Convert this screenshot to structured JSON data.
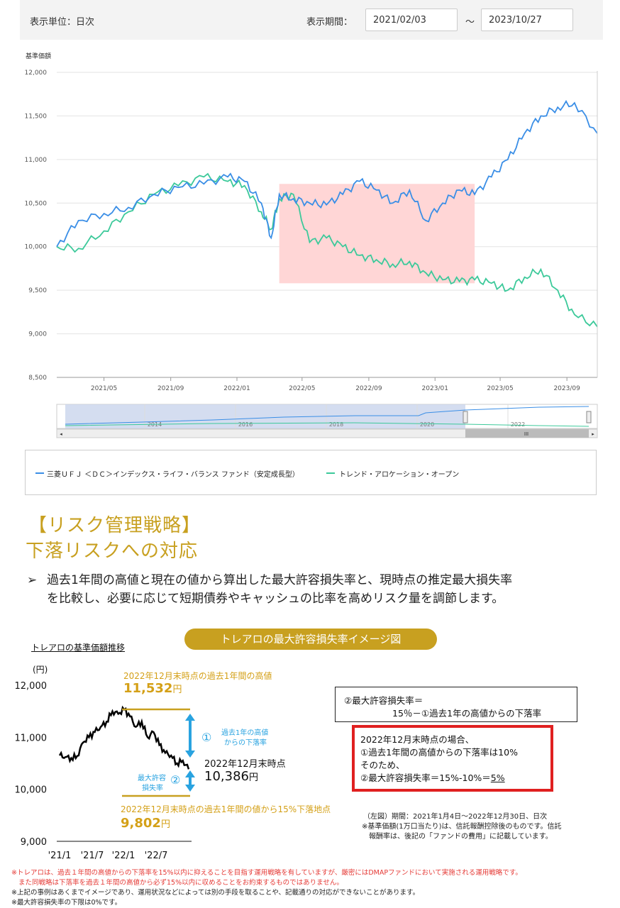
{
  "controls": {
    "unit_label": "表示単位：日次",
    "period_label": "表示期間：",
    "start_date": "2021/02/03",
    "tilde": "～",
    "end_date": "2023/10/27"
  },
  "colors": {
    "blue": "#3a8ee6",
    "green": "#3cc99a",
    "highlight": "#ffd6d6",
    "gold": "#c8a020",
    "red": "#e53935"
  },
  "chart_data": [
    {
      "type": "line",
      "title": "",
      "ylabel": "基準価額",
      "ylim": [
        8500,
        12000
      ],
      "yticks": [
        "12,000",
        "11,500",
        "11,000",
        "10,500",
        "10,000",
        "9,500",
        "9,000",
        "8,500"
      ],
      "xticks": [
        "2021/05",
        "2021/09",
        "2022/01",
        "2022/05",
        "2022/09",
        "2023/01",
        "2023/05",
        "2023/09"
      ],
      "x_dates": [
        "2021/02/03",
        "2021/03/15",
        "2021/05/01",
        "2021/06/15",
        "2021/08/01",
        "2021/09/15",
        "2021/11/01",
        "2021/12/15",
        "2022/01/15",
        "2022/02/15",
        "2022/03/05",
        "2022/03/20",
        "2022/04/15",
        "2022/05/15",
        "2022/06/15",
        "2022/07/15",
        "2022/08/15",
        "2022/09/15",
        "2022/10/15",
        "2022/11/15",
        "2022/12/15",
        "2023/01/15",
        "2023/02/15",
        "2023/03/15",
        "2023/04/15",
        "2023/05/15",
        "2023/06/15",
        "2023/07/15",
        "2023/08/15",
        "2023/09/15",
        "2023/10/27"
      ],
      "series": [
        {
          "name": "三菱ＵＦＪ ＜ＤＣ＞インデックス・ライフ・バランス ファンド（安定成長型）",
          "color": "#3a8ee6",
          "values": [
            10000,
            10300,
            10380,
            10450,
            10600,
            10680,
            10720,
            10800,
            10750,
            10500,
            10100,
            10600,
            10550,
            10500,
            10480,
            10600,
            10750,
            10650,
            10500,
            10650,
            10300,
            10500,
            10650,
            10600,
            10800,
            11000,
            11300,
            11500,
            11600,
            11650,
            11300
          ]
        },
        {
          "name": "トレンド・アロケーション・オープン",
          "color": "#3cc99a",
          "values": [
            10000,
            9980,
            10180,
            10400,
            10600,
            10700,
            10800,
            10750,
            10700,
            10400,
            10200,
            10550,
            10600,
            10050,
            10100,
            10000,
            9900,
            9850,
            9800,
            9830,
            9700,
            9620,
            9600,
            9620,
            9580,
            9500,
            9650,
            9740,
            9500,
            9220,
            9080
          ]
        }
      ],
      "highlight_range": [
        "2022/03/20",
        "2023/03/15"
      ],
      "highlight_yrange": [
        9580,
        10720
      ],
      "navigator_labels": [
        "2014",
        "2016",
        "2018",
        "2020",
        "2022"
      ],
      "navigator_scroll_label": "III"
    },
    {
      "type": "line",
      "title": "トレアロの基準価額推移",
      "ylabel": "(円)",
      "ylim": [
        9000,
        12000
      ],
      "yticks": [
        "12,000",
        "11,000",
        "10,000",
        "9,000"
      ],
      "xticks": [
        "'21/1",
        "'21/7",
        "'22/1",
        "'22/7"
      ],
      "series": [
        {
          "name": "トレアロ",
          "color": "#000000",
          "values": [
            10650,
            10620,
            10600,
            10640,
            10900,
            11000,
            11100,
            11200,
            11300,
            11500,
            11450,
            11532,
            11400,
            11200,
            11300,
            11000,
            11100,
            10850,
            10700,
            10650,
            10500,
            10550,
            10386
          ]
        }
      ]
    }
  ],
  "legend": {
    "item1": "三菱ＵＦＪ ＜ＤＣ＞インデックス・ライフ・バランス ファンド（安定成長型）",
    "item2": "トレンド・アロケーション・オープン"
  },
  "section": {
    "heading1": "【リスク管理戦略】",
    "heading2": "下落リスクへの対応",
    "bullet": "➢",
    "line1": "過去1年間の高値と現在の値から算出した最大許容損失率と、現時点の推定最大損失率",
    "line2": "を比較し、必要に応じて短期債券やキャッシュの比率を高めリスク量を調節します。"
  },
  "illustration": {
    "badge": "トレアロの最大許容損失率イメージ図",
    "subtitle": "トレアロの基準価額推移",
    "yen_unit": "(円)",
    "peak_label": "2022年12月末時点の過去1年間の高値",
    "peak_value": "11,532",
    "yen": "円",
    "drop_num": "①",
    "drop_label1": "過去1年の高値",
    "drop_label2": "からの下落率",
    "current_label": "2022年12月末時点",
    "current_value": "10,386",
    "max_num": "②",
    "max_label1": "最大許容",
    "max_label2": "損失率",
    "floor_label": "2022年12月末時点の過去1年間の値から15%下落地点",
    "floor_value": "9,802",
    "formula1": "②最大許容損失率＝",
    "formula2": "15％－①過去1年の高値からの下落率",
    "case1": "2022年12月末時点の場合、",
    "case2": "①過去1年間の高値からの下落率は10%",
    "case3": "そのため、",
    "case4_pre": "②最大許容損失率＝15%-10%＝",
    "case4_val": "5%",
    "note1": "（左図）期間：2021年1月4日～2022年12月30日、日次",
    "note2": "※基準価額(1万口当たり)は、信託報酬控除後のものです。信託",
    "note3": "報酬率は、後記の「ファンドの費用」に記載しています。"
  },
  "footnotes": {
    "red1": "※トレアロは、過去１年間の高値からの下落率を15%以内に抑えることを目指す運用戦略を有していますが、厳密にはDMAPファンドにおいて実施される運用戦略です。",
    "red2": "また同戦略は下落率を過去１年間の高値から必ず15%以内に収めることをお約束するものではありません。",
    "blk1": "※上記の事例はあくまでイメージであり、運用状況などによっては別の手段を取ることや、記載通りの対応ができないことがあります。",
    "blk2": "※最大許容損失率の下限は0%です。"
  }
}
